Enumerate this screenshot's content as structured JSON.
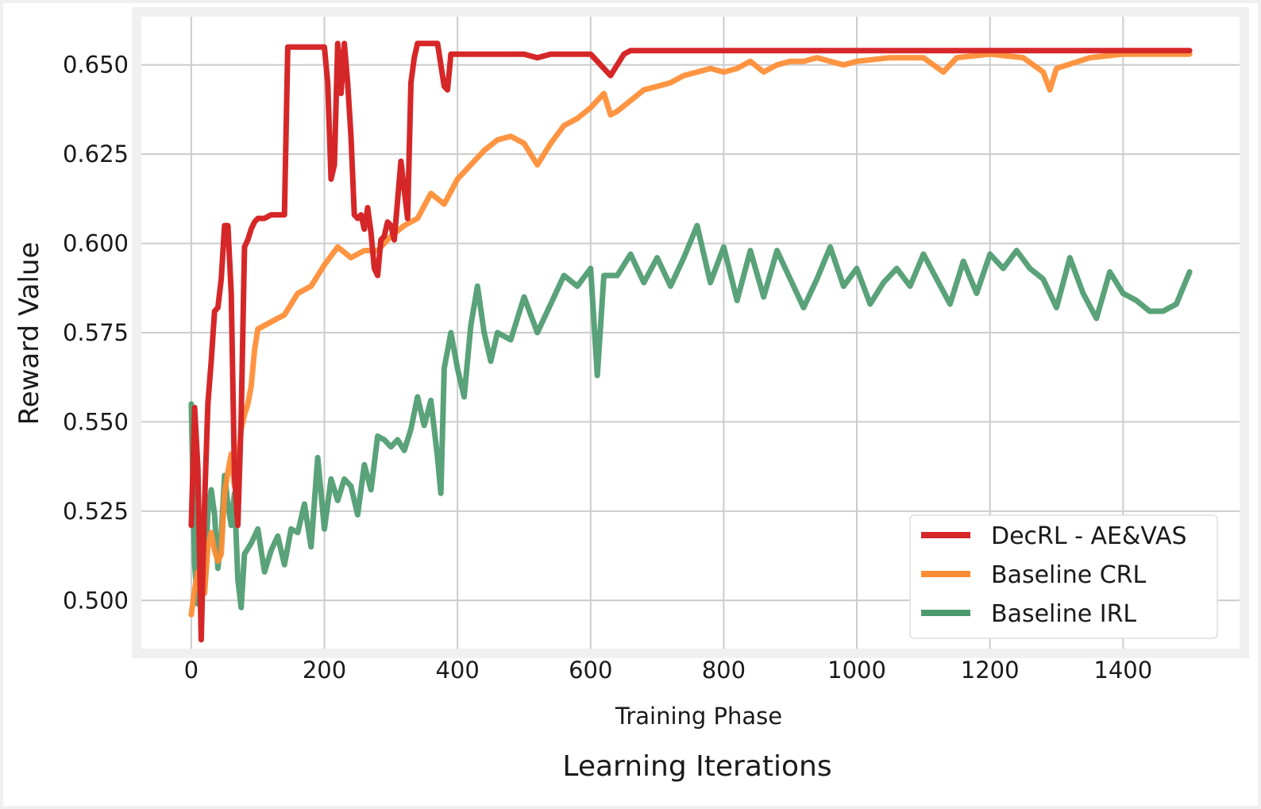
{
  "chart_data": {
    "type": "line",
    "xlabel": "Training Phase",
    "ylabel": "Reward Value",
    "footer_label": "Learning Iterations",
    "xlim": [
      -75,
      1575
    ],
    "ylim": [
      0.4865,
      0.6635
    ],
    "xticks": [
      0,
      200,
      400,
      600,
      800,
      1000,
      1200,
      1400
    ],
    "xtick_labels": [
      "0",
      "200",
      "400",
      "600",
      "800",
      "1000",
      "1200",
      "1400"
    ],
    "yticks": [
      0.5,
      0.525,
      0.55,
      0.575,
      0.6,
      0.625,
      0.65
    ],
    "ytick_labels": [
      "0.500",
      "0.525",
      "0.550",
      "0.575",
      "0.600",
      "0.625",
      "0.650"
    ],
    "grid": true,
    "legend_position": "bottom-right",
    "series": [
      {
        "name": "DecRL - AE&VAS",
        "color": "#d62728",
        "x": [
          0,
          5,
          10,
          15,
          20,
          25,
          30,
          35,
          40,
          45,
          50,
          55,
          60,
          65,
          70,
          75,
          80,
          85,
          90,
          95,
          100,
          110,
          120,
          130,
          140,
          145,
          150,
          160,
          170,
          180,
          190,
          200,
          205,
          210,
          215,
          220,
          225,
          230,
          235,
          240,
          245,
          250,
          255,
          260,
          265,
          270,
          275,
          280,
          285,
          290,
          295,
          300,
          305,
          310,
          315,
          320,
          325,
          330,
          335,
          340,
          350,
          360,
          370,
          375,
          380,
          385,
          390,
          400,
          450,
          500,
          520,
          540,
          560,
          580,
          600,
          610,
          620,
          630,
          640,
          650,
          660,
          700,
          800,
          900,
          1000,
          1100,
          1200,
          1300,
          1400,
          1500
        ],
        "y": [
          0.521,
          0.554,
          0.537,
          0.489,
          0.527,
          0.555,
          0.567,
          0.581,
          0.582,
          0.59,
          0.605,
          0.605,
          0.586,
          0.535,
          0.521,
          0.551,
          0.599,
          0.601,
          0.604,
          0.606,
          0.607,
          0.607,
          0.608,
          0.608,
          0.608,
          0.655,
          0.655,
          0.655,
          0.655,
          0.655,
          0.655,
          0.655,
          0.645,
          0.618,
          0.622,
          0.656,
          0.642,
          0.656,
          0.645,
          0.63,
          0.608,
          0.607,
          0.608,
          0.604,
          0.61,
          0.603,
          0.593,
          0.591,
          0.601,
          0.602,
          0.606,
          0.605,
          0.601,
          0.612,
          0.623,
          0.615,
          0.607,
          0.645,
          0.652,
          0.656,
          0.656,
          0.656,
          0.656,
          0.65,
          0.644,
          0.643,
          0.653,
          0.653,
          0.653,
          0.653,
          0.652,
          0.653,
          0.653,
          0.653,
          0.653,
          0.651,
          0.649,
          0.647,
          0.65,
          0.653,
          0.654,
          0.654,
          0.654,
          0.654,
          0.654,
          0.654,
          0.654,
          0.654,
          0.654,
          0.654
        ]
      },
      {
        "name": "Baseline CRL",
        "color": "#ff8c32",
        "x": [
          0,
          5,
          10,
          15,
          20,
          25,
          30,
          35,
          40,
          45,
          50,
          55,
          60,
          65,
          70,
          75,
          80,
          85,
          90,
          95,
          100,
          120,
          140,
          160,
          180,
          200,
          220,
          240,
          260,
          280,
          300,
          320,
          340,
          360,
          380,
          400,
          420,
          440,
          460,
          480,
          500,
          520,
          540,
          560,
          580,
          600,
          620,
          630,
          640,
          660,
          680,
          700,
          720,
          740,
          760,
          780,
          800,
          820,
          840,
          860,
          880,
          900,
          920,
          940,
          960,
          980,
          1000,
          1050,
          1100,
          1130,
          1150,
          1200,
          1250,
          1280,
          1290,
          1300,
          1350,
          1400,
          1450,
          1500
        ],
        "y": [
          0.496,
          0.503,
          0.508,
          0.505,
          0.502,
          0.515,
          0.519,
          0.514,
          0.511,
          0.513,
          0.53,
          0.536,
          0.541,
          0.532,
          0.537,
          0.548,
          0.552,
          0.555,
          0.56,
          0.57,
          0.576,
          0.578,
          0.58,
          0.586,
          0.588,
          0.594,
          0.599,
          0.596,
          0.598,
          0.598,
          0.602,
          0.605,
          0.607,
          0.614,
          0.611,
          0.618,
          0.622,
          0.626,
          0.629,
          0.63,
          0.628,
          0.622,
          0.628,
          0.633,
          0.635,
          0.638,
          0.642,
          0.636,
          0.637,
          0.64,
          0.643,
          0.644,
          0.645,
          0.647,
          0.648,
          0.649,
          0.648,
          0.649,
          0.651,
          0.648,
          0.65,
          0.651,
          0.651,
          0.652,
          0.651,
          0.65,
          0.651,
          0.652,
          0.652,
          0.648,
          0.652,
          0.653,
          0.652,
          0.648,
          0.643,
          0.649,
          0.652,
          0.653,
          0.653,
          0.653
        ]
      },
      {
        "name": "Baseline IRL",
        "color": "#4c9a6e",
        "x": [
          0,
          5,
          10,
          15,
          20,
          25,
          30,
          35,
          40,
          45,
          50,
          55,
          60,
          65,
          70,
          75,
          80,
          90,
          100,
          110,
          120,
          130,
          140,
          150,
          160,
          170,
          180,
          190,
          200,
          210,
          220,
          230,
          240,
          250,
          260,
          270,
          280,
          290,
          300,
          310,
          320,
          330,
          340,
          350,
          360,
          370,
          375,
          380,
          390,
          400,
          410,
          420,
          430,
          440,
          450,
          460,
          480,
          500,
          520,
          540,
          560,
          580,
          600,
          610,
          620,
          640,
          660,
          680,
          700,
          720,
          740,
          760,
          780,
          800,
          820,
          840,
          860,
          880,
          900,
          920,
          940,
          960,
          980,
          1000,
          1020,
          1040,
          1060,
          1080,
          1100,
          1120,
          1140,
          1160,
          1180,
          1200,
          1220,
          1240,
          1260,
          1280,
          1300,
          1320,
          1340,
          1360,
          1380,
          1400,
          1420,
          1440,
          1460,
          1480,
          1500
        ],
        "y": [
          0.555,
          0.51,
          0.499,
          0.513,
          0.503,
          0.525,
          0.531,
          0.524,
          0.509,
          0.518,
          0.535,
          0.527,
          0.521,
          0.53,
          0.506,
          0.498,
          0.513,
          0.516,
          0.52,
          0.508,
          0.514,
          0.518,
          0.51,
          0.52,
          0.519,
          0.527,
          0.515,
          0.54,
          0.52,
          0.534,
          0.528,
          0.534,
          0.532,
          0.524,
          0.538,
          0.531,
          0.546,
          0.545,
          0.543,
          0.545,
          0.542,
          0.548,
          0.557,
          0.549,
          0.556,
          0.54,
          0.53,
          0.565,
          0.575,
          0.565,
          0.557,
          0.577,
          0.588,
          0.575,
          0.567,
          0.575,
          0.573,
          0.585,
          0.575,
          0.583,
          0.591,
          0.588,
          0.593,
          0.563,
          0.591,
          0.591,
          0.597,
          0.589,
          0.596,
          0.588,
          0.596,
          0.605,
          0.589,
          0.599,
          0.584,
          0.598,
          0.585,
          0.598,
          0.59,
          0.582,
          0.59,
          0.599,
          0.588,
          0.593,
          0.583,
          0.589,
          0.593,
          0.588,
          0.597,
          0.59,
          0.583,
          0.595,
          0.586,
          0.597,
          0.593,
          0.598,
          0.593,
          0.59,
          0.582,
          0.596,
          0.586,
          0.579,
          0.592,
          0.586,
          0.584,
          0.581,
          0.581,
          0.583,
          0.592
        ]
      }
    ]
  }
}
